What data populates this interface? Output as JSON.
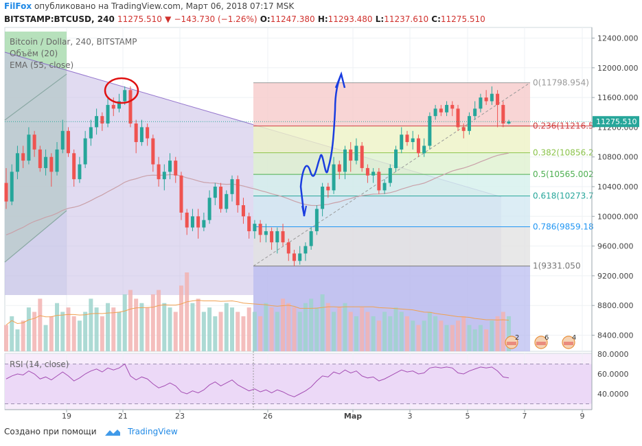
{
  "header": {
    "brand": "FilFox",
    "published": "опубликовано на TradingView.com, Март 06, 2018 07:17 MSK",
    "symbol": "BITSTAMP:BTCUSD, 240",
    "last": "11275.510",
    "change": "−143.730 (−1.26%)",
    "o_label": "O:",
    "o": "11247.380",
    "h_label": "H:",
    "h": "11293.480",
    "l_label": "L:",
    "l": "11237.610",
    "c_label": "C:",
    "c": "11275.510"
  },
  "legend": {
    "title": "Bitcoin / Dollar, 240, BITSTAMP",
    "volume": "Объём (20)",
    "ema": "EMA (55, close)",
    "rsi": "RSI (14, close)"
  },
  "price_tag": "11275.510",
  "footer": {
    "created": "Создано при помощи",
    "tv": "TradingView"
  },
  "events": [
    "2",
    "6",
    "4"
  ],
  "colors": {
    "up": "#26a69a",
    "down": "#ef5350",
    "ema": "#c9a0a8",
    "fib_ray": "#7e57c2",
    "annotation_blue": "#1a3de0",
    "annotation_red": "#e01010"
  },
  "chart_data": {
    "type": "candlestick",
    "price_axis": {
      "ticks": [
        "12400.000",
        "12000.000",
        "11600.000",
        "11200.000",
        "10800.000",
        "10400.000",
        "10000.000",
        "9600.000",
        "9200.000",
        "8800.000",
        "8400.000"
      ],
      "tick_values": [
        12400,
        12000,
        11600,
        11200,
        10800,
        10400,
        10000,
        9600,
        9200,
        8800,
        8400
      ]
    },
    "rsi_axis": {
      "ticks": [
        "80.0000",
        "60.0000",
        "40.0000"
      ],
      "tick_values": [
        80,
        60,
        40
      ]
    },
    "x_axis": {
      "ticks": [
        "19",
        "21",
        "23",
        "26",
        "Мар",
        "3",
        "5",
        "7",
        "9"
      ]
    },
    "fib_levels": [
      {
        "ratio": "0",
        "price": "11798.954",
        "label": "0(11798.954)",
        "color": "#999999",
        "fill": "#f6cbcb"
      },
      {
        "ratio": "0.236",
        "price": "11216.5",
        "label": "0.236(11216.5",
        "color": "#d04040",
        "fill": "#eef3c6"
      },
      {
        "ratio": "0.382",
        "price": "10856.2",
        "label": "0.382(10856.2",
        "color": "#8bc34a",
        "fill": "#dff1cf"
      },
      {
        "ratio": "0.5",
        "price": "10565.002",
        "label": "0.5(10565.002",
        "color": "#4caf50",
        "fill": "#d4f0ec"
      },
      {
        "ratio": "0.618",
        "price": "10273.7",
        "label": "0.618(10273.7",
        "color": "#26a69a",
        "fill": "#d3e8f2"
      },
      {
        "ratio": "0.786",
        "price": "9859.18",
        "label": "0.786(9859.18",
        "color": "#2196f3",
        "fill": "#e2e2e2"
      },
      {
        "ratio": "1",
        "price": "9331.050",
        "label": "1(9331.050",
        "color": "#777777",
        "fill": ""
      }
    ],
    "candles": [
      [
        10450,
        10200,
        10650,
        10100
      ],
      [
        10200,
        10600,
        10700,
        10150
      ],
      [
        10600,
        10850,
        10950,
        10500
      ],
      [
        10850,
        10750,
        10950,
        10650
      ],
      [
        10750,
        11100,
        11200,
        10700
      ],
      [
        11100,
        10900,
        11150,
        10800
      ],
      [
        10900,
        10650,
        10950,
        10600
      ],
      [
        10650,
        10800,
        10900,
        10550
      ],
      [
        10800,
        10600,
        10850,
        10400
      ],
      [
        10600,
        10900,
        11000,
        10550
      ],
      [
        10900,
        11150,
        11300,
        10850
      ],
      [
        11150,
        10850,
        11200,
        10800
      ],
      [
        10850,
        10500,
        10900,
        10400
      ],
      [
        10500,
        10700,
        10800,
        10450
      ],
      [
        10700,
        11050,
        11150,
        10650
      ],
      [
        11050,
        11200,
        11300,
        10950
      ],
      [
        11200,
        11350,
        11450,
        11100
      ],
      [
        11350,
        11250,
        11400,
        11150
      ],
      [
        11250,
        11500,
        11600,
        11200
      ],
      [
        11500,
        11450,
        11600,
        11350
      ],
      [
        11450,
        11550,
        11650,
        11400
      ],
      [
        11550,
        11700,
        11750,
        11500
      ],
      [
        11700,
        11250,
        11750,
        11200
      ],
      [
        11250,
        11000,
        11300,
        10850
      ],
      [
        11000,
        11200,
        11300,
        10950
      ],
      [
        11200,
        11050,
        11250,
        10950
      ],
      [
        11050,
        10700,
        11100,
        10600
      ],
      [
        10700,
        10500,
        10800,
        10400
      ],
      [
        10500,
        10600,
        10700,
        10350
      ],
      [
        10600,
        10750,
        10850,
        10500
      ],
      [
        10750,
        10550,
        10800,
        10450
      ],
      [
        10550,
        10050,
        10600,
        9950
      ],
      [
        10050,
        9850,
        10100,
        9750
      ],
      [
        9850,
        10000,
        10100,
        9800
      ],
      [
        10000,
        9850,
        10100,
        9700
      ],
      [
        9850,
        9950,
        10050,
        9800
      ],
      [
        9950,
        10250,
        10350,
        9900
      ],
      [
        10250,
        10400,
        10450,
        10150
      ],
      [
        10400,
        10100,
        10450,
        10050
      ],
      [
        10100,
        10300,
        10350,
        10050
      ],
      [
        10300,
        10500,
        10550,
        10200
      ],
      [
        10500,
        10150,
        10550,
        10050
      ],
      [
        10150,
        10000,
        10250,
        9900
      ],
      [
        10000,
        9800,
        10050,
        9700
      ],
      [
        9800,
        9900,
        9950,
        9700
      ],
      [
        9900,
        9750,
        9950,
        9650
      ],
      [
        9750,
        9800,
        9900,
        9650
      ],
      [
        9800,
        9650,
        9850,
        9550
      ],
      [
        9650,
        9800,
        9850,
        9500
      ],
      [
        9800,
        9650,
        9900,
        9600
      ],
      [
        9650,
        9500,
        9700,
        9400
      ],
      [
        9500,
        9400,
        9550,
        9331
      ],
      [
        9400,
        9500,
        9600,
        9350
      ],
      [
        9500,
        9600,
        9650,
        9400
      ],
      [
        9600,
        9800,
        9850,
        9550
      ],
      [
        9800,
        10100,
        10150,
        9750
      ],
      [
        10100,
        10400,
        10450,
        10000
      ],
      [
        10400,
        10350,
        10450,
        10250
      ],
      [
        10350,
        10700,
        10800,
        10300
      ],
      [
        10700,
        10600,
        10750,
        10500
      ],
      [
        10600,
        10900,
        10950,
        10500
      ],
      [
        10900,
        10750,
        11000,
        10600
      ],
      [
        10750,
        10950,
        11050,
        10700
      ],
      [
        10950,
        10650,
        11000,
        10600
      ],
      [
        10650,
        10550,
        10700,
        10450
      ],
      [
        10550,
        10600,
        10650,
        10450
      ],
      [
        10600,
        10350,
        10650,
        10300
      ],
      [
        10350,
        10450,
        10500,
        10300
      ],
      [
        10450,
        10650,
        10700,
        10400
      ],
      [
        10650,
        10900,
        10950,
        10600
      ],
      [
        10900,
        11100,
        11200,
        10850
      ],
      [
        11100,
        11000,
        11150,
        10950
      ],
      [
        11000,
        11050,
        11150,
        10900
      ],
      [
        11050,
        10850,
        11100,
        10800
      ],
      [
        10850,
        10950,
        11050,
        10800
      ],
      [
        10950,
        11350,
        11400,
        10900
      ],
      [
        11350,
        11450,
        11500,
        11300
      ],
      [
        11450,
        11400,
        11500,
        11350
      ],
      [
        11400,
        11500,
        11550,
        11350
      ],
      [
        11500,
        11450,
        11550,
        11350
      ],
      [
        11450,
        11200,
        11500,
        11150
      ],
      [
        11200,
        11150,
        11250,
        11050
      ],
      [
        11150,
        11350,
        11400,
        11100
      ],
      [
        11350,
        11450,
        11550,
        11300
      ],
      [
        11450,
        11600,
        11650,
        11400
      ],
      [
        11600,
        11550,
        11700,
        11500
      ],
      [
        11550,
        11650,
        11750,
        11500
      ],
      [
        11650,
        11500,
        11700,
        11200
      ],
      [
        11500,
        11250,
        11550,
        11200
      ],
      [
        11250,
        11275.51,
        11300,
        11237.61
      ]
    ],
    "volumes": [
      30,
      40,
      25,
      35,
      50,
      45,
      60,
      30,
      40,
      55,
      45,
      50,
      40,
      35,
      45,
      60,
      50,
      40,
      55,
      50,
      45,
      65,
      70,
      60,
      55,
      50,
      65,
      70,
      55,
      50,
      45,
      75,
      90,
      55,
      60,
      45,
      50,
      40,
      45,
      55,
      50,
      45,
      40,
      50,
      45,
      40,
      55,
      50,
      45,
      60,
      55,
      50,
      45,
      55,
      60,
      50,
      65,
      55,
      45,
      50,
      55,
      45,
      40,
      50,
      45,
      40,
      35,
      45,
      40,
      50,
      45,
      40,
      35,
      30,
      35,
      45,
      40,
      35,
      30,
      30,
      35,
      40,
      30,
      25,
      30,
      25,
      35,
      40,
      45,
      40
    ],
    "rsi": [
      55,
      58,
      60,
      59,
      63,
      60,
      55,
      57,
      54,
      58,
      62,
      58,
      53,
      56,
      60,
      63,
      65,
      62,
      66,
      64,
      66,
      70,
      58,
      54,
      57,
      55,
      50,
      46,
      48,
      51,
      48,
      42,
      40,
      43,
      41,
      44,
      49,
      52,
      48,
      51,
      54,
      49,
      46,
      43,
      45,
      42,
      44,
      41,
      44,
      42,
      39,
      37,
      40,
      43,
      47,
      53,
      58,
      57,
      62,
      60,
      64,
      61,
      63,
      58,
      56,
      57,
      53,
      55,
      58,
      61,
      64,
      62,
      63,
      60,
      61,
      66,
      67,
      66,
      67,
      66,
      61,
      60,
      63,
      65,
      67,
      66,
      67,
      63,
      57,
      56
    ]
  }
}
